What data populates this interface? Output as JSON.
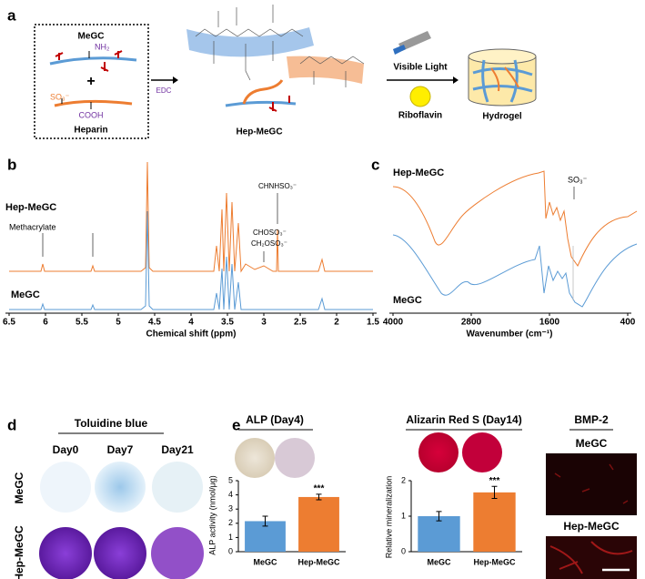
{
  "panel_a": {
    "label": "a",
    "megc": "MeGC",
    "nh2": "NH₂",
    "plus": "+",
    "so3": "SO₃⁻",
    "cooh": "COOH",
    "heparin": "Heparin",
    "edc": "EDC",
    "product": "Hep-MeGC",
    "light": "Visible Light",
    "riboflavin": "Riboflavin",
    "hydrogel": "Hydrogel"
  },
  "chart_data": [
    {
      "type": "spectrum",
      "label": "b",
      "xlabel": "Chemical shift (ppm)",
      "xlim": [
        6.5,
        1.5
      ],
      "xticks": [
        6.5,
        6,
        5.5,
        5,
        4.5,
        4,
        3.5,
        3,
        2.5,
        2,
        1.5
      ],
      "annotations": [
        "Hep-MeGC",
        "Methacrylate",
        "CHOSO₃⁻",
        "CH₂OSO₃⁻",
        "CHNHSO₃⁻",
        "MeGC"
      ]
    },
    {
      "type": "spectrum",
      "label": "c",
      "xlabel": "Wavenumber (cm⁻¹)",
      "xlim": [
        4000,
        400
      ],
      "xticks": [
        4000,
        2800,
        1600,
        400
      ],
      "annotations": [
        "Hep-MeGC",
        "SO₃⁻",
        "MeGC"
      ]
    },
    {
      "type": "bar",
      "label": "e",
      "title": "ALP (Day4)",
      "ylabel": "ALP activity (nmol/μg)",
      "categories": [
        "MeGC",
        "Hep-MeGC"
      ],
      "values": [
        2.15,
        3.85
      ],
      "errors": [
        0.35,
        0.2
      ],
      "colors": [
        "#5b9bd5",
        "#ed7d31"
      ],
      "ylim": [
        0,
        5
      ],
      "yticks": [
        0,
        1,
        2,
        3,
        4,
        5
      ],
      "significance": "***"
    },
    {
      "type": "bar",
      "title": "Alizarin Red S (Day14)",
      "ylabel": "Relative mineralization",
      "categories": [
        "MeGC",
        "Hep-MeGC"
      ],
      "values": [
        1.0,
        1.67
      ],
      "errors": [
        0.13,
        0.17
      ],
      "colors": [
        "#5b9bd5",
        "#ed7d31"
      ],
      "ylim": [
        0,
        2
      ],
      "yticks": [
        0,
        1,
        2
      ],
      "significance": "***"
    }
  ],
  "panel_d": {
    "label": "d",
    "title": "Toluidine blue",
    "columns": [
      "Day0",
      "Day7",
      "Day21"
    ],
    "rows": [
      "MeGC",
      "Hep-MeGC"
    ]
  },
  "panel_bmp": {
    "title": "BMP-2",
    "rows": [
      "MeGC",
      "Hep-MeGC"
    ]
  }
}
